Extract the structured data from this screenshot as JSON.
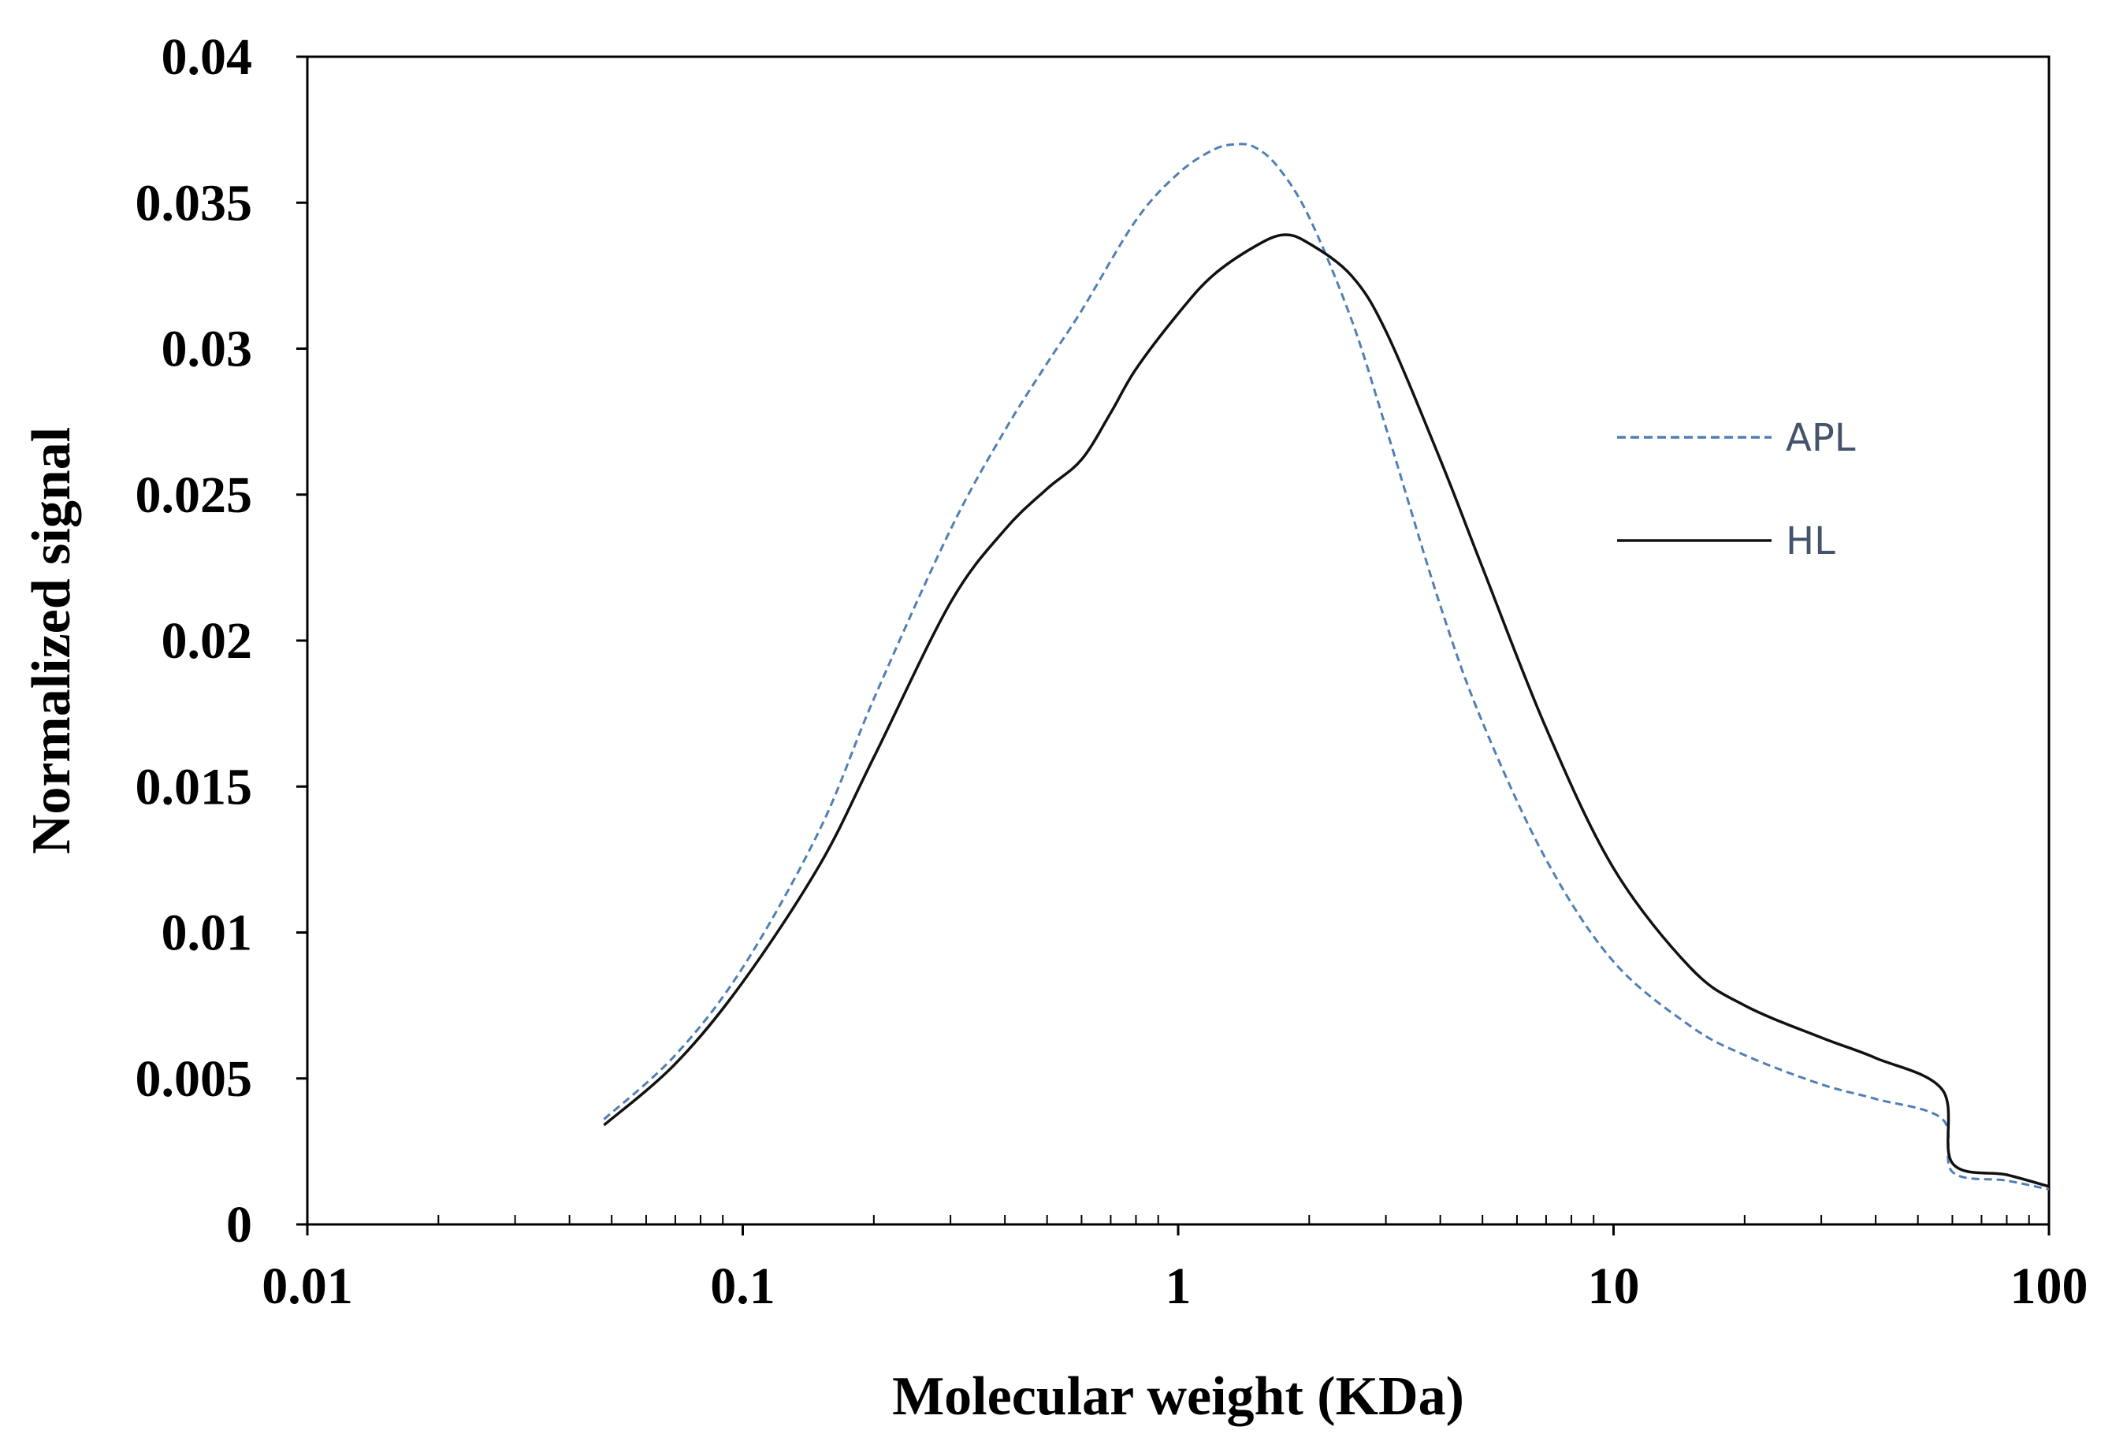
{
  "chart_data": {
    "type": "line",
    "title": "",
    "xlabel": "Molecular weight (KDa)",
    "ylabel": "Normalized signal",
    "xscale": "log",
    "xlim": [
      0.01,
      100
    ],
    "ylim": [
      0,
      0.04
    ],
    "grid": false,
    "legend_position": "right",
    "x_ticks": [
      0.01,
      0.1,
      1,
      10,
      100
    ],
    "x_tick_labels": [
      "0.01",
      "0.1",
      "1",
      "10",
      "100"
    ],
    "y_ticks": [
      0,
      0.005,
      0.01,
      0.015,
      0.02,
      0.025,
      0.03,
      0.035,
      0.04
    ],
    "y_tick_labels": [
      "0",
      "0.005",
      "0.01",
      "0.015",
      "0.02",
      "0.025",
      "0.03",
      "0.035",
      "0.04"
    ],
    "series": [
      {
        "name": "APL",
        "color": "#4f7fb5",
        "dash": "dashed",
        "x": [
          0.048,
          0.07,
          0.1,
          0.15,
          0.2,
          0.3,
          0.4,
          0.5,
          0.6,
          0.8,
          1.0,
          1.2,
          1.35,
          1.5,
          1.7,
          2.0,
          2.5,
          3.0,
          4.0,
          5.0,
          7.0,
          10,
          15,
          20,
          30,
          40,
          57,
          60,
          80,
          100
        ],
        "y": [
          0.0036,
          0.0058,
          0.0088,
          0.0135,
          0.018,
          0.0238,
          0.0272,
          0.0295,
          0.0313,
          0.0344,
          0.036,
          0.0368,
          0.037,
          0.0369,
          0.0362,
          0.0345,
          0.031,
          0.0273,
          0.0212,
          0.0172,
          0.0125,
          0.009,
          0.0068,
          0.0058,
          0.0048,
          0.0043,
          0.0036,
          0.0018,
          0.0015,
          0.0012
        ]
      },
      {
        "name": "HL",
        "color": "#111111",
        "dash": "solid",
        "x": [
          0.048,
          0.07,
          0.1,
          0.15,
          0.2,
          0.3,
          0.4,
          0.5,
          0.6,
          0.7,
          0.8,
          1.0,
          1.2,
          1.5,
          1.75,
          2.0,
          2.5,
          3.0,
          4.0,
          5.0,
          7.0,
          10,
          15,
          20,
          30,
          40,
          57,
          60,
          80,
          100
        ],
        "y": [
          0.0034,
          0.0055,
          0.0083,
          0.0123,
          0.016,
          0.0213,
          0.0238,
          0.0252,
          0.0262,
          0.0278,
          0.0293,
          0.0312,
          0.0325,
          0.0335,
          0.0339,
          0.0336,
          0.0325,
          0.0306,
          0.0262,
          0.0225,
          0.017,
          0.0122,
          0.0088,
          0.0075,
          0.0064,
          0.0057,
          0.0046,
          0.0021,
          0.0017,
          0.0013
        ]
      }
    ]
  }
}
